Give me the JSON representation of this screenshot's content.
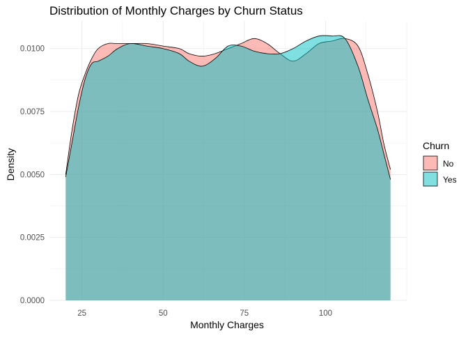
{
  "chart_data": {
    "type": "area",
    "title": "Distribution of Monthly Charges by Churn Status",
    "xlabel": "Monthly Charges",
    "ylabel": "Density",
    "xlim": [
      15,
      125
    ],
    "ylim": [
      0,
      0.0111
    ],
    "x_ticks": [
      25,
      50,
      75,
      100
    ],
    "x_tick_labels": [
      "25",
      "50",
      "75",
      "100"
    ],
    "y_ticks": [
      0,
      0.0025,
      0.005,
      0.0075,
      0.01
    ],
    "y_tick_labels": [
      "0.0000",
      "0.0025",
      "0.0050",
      "0.0075",
      "0.0100"
    ],
    "grid": true,
    "legend_position": "right",
    "legend_title": "Churn",
    "series": [
      {
        "name": "No",
        "color": "#F8766D",
        "x": [
          20,
          22,
          24,
          26,
          28,
          30,
          33,
          36,
          40,
          45,
          50,
          55,
          58,
          62,
          66,
          70,
          74,
          78,
          82,
          86,
          90,
          94,
          98,
          102,
          106,
          110,
          113,
          116,
          118,
          120
        ],
        "y": [
          0.005,
          0.0068,
          0.0082,
          0.009,
          0.0096,
          0.01,
          0.0102,
          0.0102,
          0.0102,
          0.0102,
          0.0101,
          0.01,
          0.0098,
          0.0097,
          0.0098,
          0.01,
          0.0102,
          0.0104,
          0.0102,
          0.0098,
          0.0095,
          0.0098,
          0.0102,
          0.0103,
          0.0104,
          0.0101,
          0.009,
          0.0075,
          0.0062,
          0.0052
        ]
      },
      {
        "name": "Yes",
        "color": "#00BFC4",
        "x": [
          20,
          22,
          24,
          26,
          28,
          30,
          33,
          36,
          40,
          45,
          50,
          55,
          58,
          62,
          66,
          70,
          74,
          78,
          82,
          86,
          90,
          94,
          98,
          102,
          106,
          110,
          113,
          116,
          118,
          120
        ],
        "y": [
          0.0049,
          0.0063,
          0.0077,
          0.0088,
          0.0094,
          0.0095,
          0.0097,
          0.01,
          0.0102,
          0.0101,
          0.01,
          0.0098,
          0.0095,
          0.0093,
          0.0096,
          0.0101,
          0.0101,
          0.0099,
          0.0098,
          0.0098,
          0.01,
          0.0103,
          0.0105,
          0.0105,
          0.0104,
          0.0093,
          0.008,
          0.0068,
          0.0058,
          0.0048
        ]
      }
    ]
  }
}
